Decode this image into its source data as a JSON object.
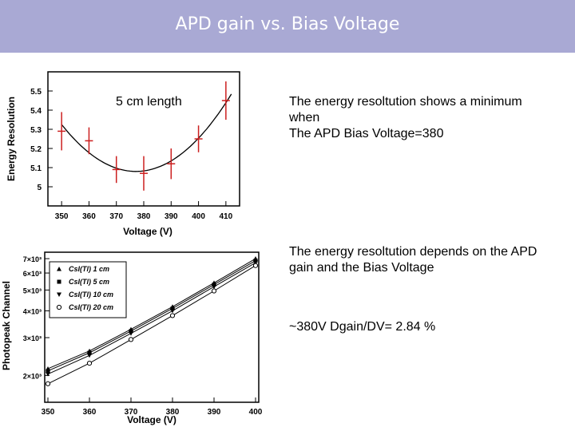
{
  "slide": {
    "title": "APD gain vs. Bias Voltage",
    "text1_lines": [
      "The energy resoltution shows a minimum",
      "when",
      "The APD Bias Voltage=380"
    ],
    "text2_lines": [
      "The energy resoltution depends on the APD",
      "gain and the Bias Voltage"
    ],
    "text3": "~380V Dgain/DV= 2.84 %"
  },
  "chart_data": [
    {
      "type": "scatter",
      "annotation": "5 cm length",
      "xlabel": "Voltage (V)",
      "ylabel": "Energy Resolution",
      "xlim": [
        345,
        415
      ],
      "ylim": [
        4.9,
        5.6
      ],
      "xticks": [
        350,
        360,
        370,
        380,
        390,
        400,
        410
      ],
      "yticks": [
        5,
        5.1,
        5.2,
        5.3,
        5.4,
        5.5
      ],
      "ytick_labels": [
        "5",
        "5.1",
        "5.2",
        "5.3",
        "5.4",
        "5.5"
      ],
      "points": [
        {
          "x": 350,
          "y": 5.29,
          "err": 0.1
        },
        {
          "x": 360,
          "y": 5.24,
          "err": 0.07
        },
        {
          "x": 370,
          "y": 5.09,
          "err": 0.07
        },
        {
          "x": 380,
          "y": 5.07,
          "err": 0.09
        },
        {
          "x": 390,
          "y": 5.12,
          "err": 0.08
        },
        {
          "x": 400,
          "y": 5.25,
          "err": 0.07
        },
        {
          "x": 410,
          "y": 5.45,
          "err": 0.1
        }
      ],
      "fit_curve": true,
      "colors": {
        "points": "#cc1f1f",
        "curve": "#000000"
      }
    },
    {
      "type": "line",
      "xlabel": "Voltage (V)",
      "ylabel": "Photopeak Channel",
      "xlim": [
        350,
        400
      ],
      "ylim": [
        1500,
        7500
      ],
      "log_y": true,
      "xticks": [
        350,
        360,
        370,
        380,
        390,
        400
      ],
      "yticks": [
        2000,
        3000,
        4000,
        5000,
        6000,
        7000
      ],
      "ytick_labels": [
        "2×10³",
        "3×10³",
        "4×10³",
        "5×10³",
        "6×10³",
        "7×10³"
      ],
      "legend_position": "top-left",
      "series": [
        {
          "name": "CsI(Tl) 1 cm",
          "marker": "triangle-up",
          "x": [
            350,
            360,
            370,
            380,
            390,
            400
          ],
          "values": [
            2150,
            2600,
            3280,
            4180,
            5400,
            7000
          ]
        },
        {
          "name": "CsI(Tl) 5 cm",
          "marker": "square",
          "x": [
            350,
            360,
            370,
            380,
            390,
            400
          ],
          "values": [
            2100,
            2550,
            3220,
            4100,
            5300,
            6850
          ]
        },
        {
          "name": "CsI(Tl) 10 cm",
          "marker": "triangle-down",
          "x": [
            350,
            360,
            370,
            380,
            390,
            400
          ],
          "values": [
            2030,
            2480,
            3140,
            4000,
            5180,
            6700
          ]
        },
        {
          "name": "CsI(Tl) 20 cm",
          "marker": "circle-open",
          "x": [
            350,
            360,
            370,
            380,
            390,
            400
          ],
          "values": [
            1830,
            2280,
            2940,
            3800,
            4950,
            6500
          ]
        }
      ]
    }
  ]
}
